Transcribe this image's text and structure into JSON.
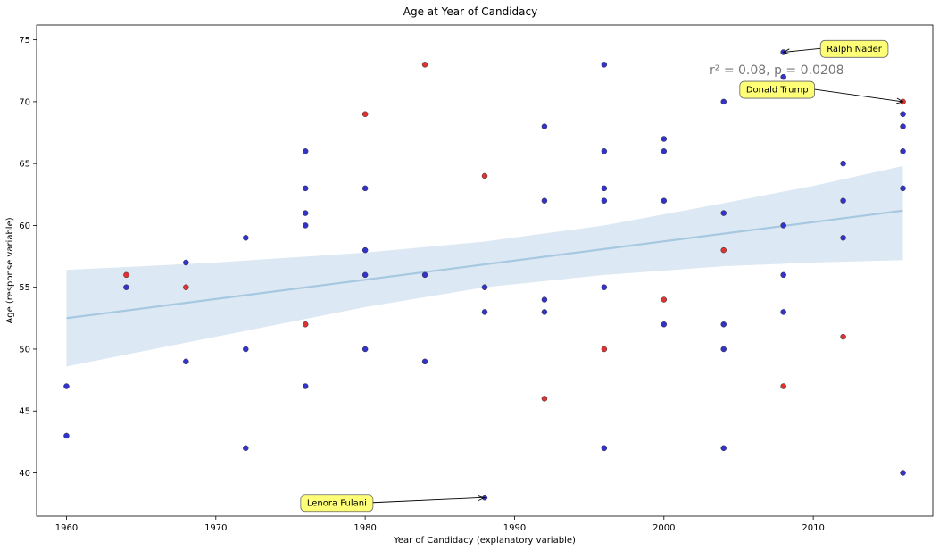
{
  "chart_data": {
    "type": "scatter",
    "title": "Age at Year of Candidacy",
    "xlabel": "Year of Candidacy (explanatory variable)",
    "ylabel": "Age (response variable)",
    "xlim": [
      1958,
      2018
    ],
    "ylim": [
      36.5,
      76.2
    ],
    "xticks": [
      1960,
      1970,
      1980,
      1990,
      2000,
      2010
    ],
    "yticks": [
      40,
      45,
      50,
      55,
      60,
      65,
      70,
      75
    ],
    "grid": false,
    "colors": {
      "blue": "#3333cc",
      "red": "#dd3333",
      "regression_line": "#a6c8e0",
      "confidence_band": "#dce8f3",
      "annotation_fill": "#ffff77"
    },
    "stat_text": "r² = 0.08,  p = 0.0208",
    "regression": {
      "x_range": [
        1960,
        2016
      ],
      "y_start": 52.5,
      "y_end": 61.2,
      "band": [
        {
          "x": 1960,
          "lo": 48.6,
          "hi": 56.4
        },
        {
          "x": 1970,
          "lo": 51.0,
          "hi": 57.0
        },
        {
          "x": 1980,
          "lo": 53.4,
          "hi": 57.8
        },
        {
          "x": 1988,
          "lo": 55.0,
          "hi": 58.7
        },
        {
          "x": 1996,
          "lo": 56.0,
          "hi": 60.0
        },
        {
          "x": 2004,
          "lo": 56.7,
          "hi": 61.8
        },
        {
          "x": 2010,
          "lo": 57.0,
          "hi": 63.2
        },
        {
          "x": 2016,
          "lo": 57.2,
          "hi": 64.8
        }
      ]
    },
    "series": [
      {
        "color": "blue",
        "points": [
          [
            1960,
            47
          ],
          [
            1960,
            43
          ],
          [
            1964,
            55
          ],
          [
            1968,
            57
          ],
          [
            1968,
            49
          ],
          [
            1972,
            59
          ],
          [
            1972,
            50
          ],
          [
            1972,
            42
          ],
          [
            1976,
            66
          ],
          [
            1976,
            63
          ],
          [
            1976,
            61
          ],
          [
            1976,
            60
          ],
          [
            1976,
            47
          ],
          [
            1980,
            63
          ],
          [
            1980,
            58
          ],
          [
            1980,
            56
          ],
          [
            1980,
            50
          ],
          [
            1984,
            56
          ],
          [
            1984,
            49
          ],
          [
            1988,
            55
          ],
          [
            1988,
            53
          ],
          [
            1988,
            38
          ],
          [
            1992,
            68
          ],
          [
            1992,
            62
          ],
          [
            1992,
            54
          ],
          [
            1992,
            53
          ],
          [
            1996,
            73
          ],
          [
            1996,
            66
          ],
          [
            1996,
            63
          ],
          [
            1996,
            62
          ],
          [
            1996,
            55
          ],
          [
            1996,
            42
          ],
          [
            2000,
            67
          ],
          [
            2000,
            66
          ],
          [
            2000,
            62
          ],
          [
            2000,
            52
          ],
          [
            2004,
            70
          ],
          [
            2004,
            61
          ],
          [
            2004,
            52
          ],
          [
            2004,
            50
          ],
          [
            2004,
            42
          ],
          [
            2008,
            74
          ],
          [
            2008,
            72
          ],
          [
            2008,
            60
          ],
          [
            2008,
            56
          ],
          [
            2008,
            53
          ],
          [
            2012,
            65
          ],
          [
            2012,
            62
          ],
          [
            2012,
            59
          ],
          [
            2016,
            69
          ],
          [
            2016,
            68
          ],
          [
            2016,
            66
          ],
          [
            2016,
            63
          ],
          [
            2016,
            40
          ]
        ]
      },
      {
        "color": "red",
        "points": [
          [
            1964,
            56
          ],
          [
            1968,
            55
          ],
          [
            1976,
            52
          ],
          [
            1980,
            69
          ],
          [
            1984,
            73
          ],
          [
            1988,
            64
          ],
          [
            1992,
            46
          ],
          [
            1996,
            50
          ],
          [
            2000,
            54
          ],
          [
            2004,
            58
          ],
          [
            2008,
            47
          ],
          [
            2012,
            51
          ],
          [
            2016,
            70
          ]
        ]
      }
    ],
    "annotations": [
      {
        "text": "Ralph Nader",
        "point": [
          2008,
          74
        ],
        "label_at": [
          2010.9,
          74.3
        ]
      },
      {
        "text": "Donald Trump",
        "point": [
          2016,
          70
        ],
        "label_at": [
          2005.5,
          71.0
        ]
      },
      {
        "text": "Lenora Fulani",
        "point": [
          1988,
          38
        ],
        "label_at": [
          1976.1,
          37.6
        ]
      }
    ]
  }
}
